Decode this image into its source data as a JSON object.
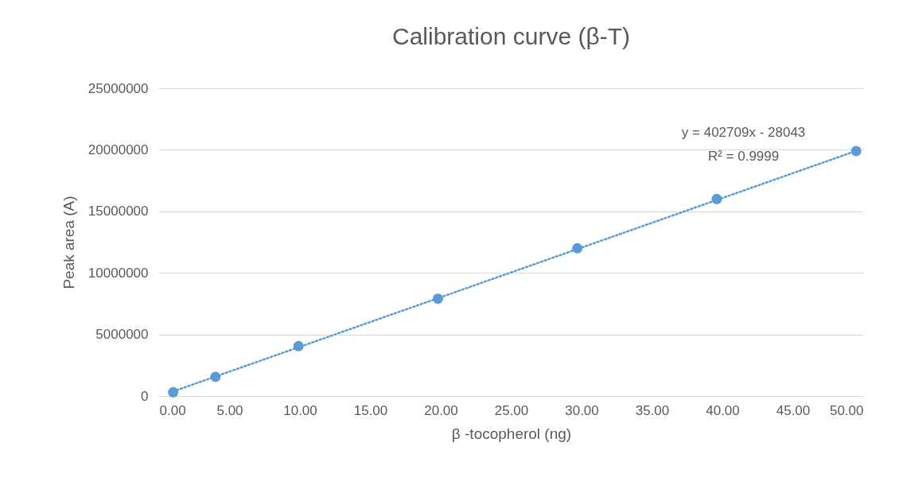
{
  "chart_data": {
    "type": "scatter",
    "title": "Calibration curve (β-T)",
    "xlabel": "β -tocopherol (ng)",
    "ylabel": "Peak area (A)",
    "series": [
      {
        "color": "#5b9bd5",
        "x": [
          1,
          4,
          9.9,
          19.8,
          29.7,
          39.6,
          49.5
        ],
        "values": [
          300000,
          1550000,
          4050000,
          7900000,
          12000000,
          16000000,
          19900000
        ],
        "marker": "circle"
      },
      {
        "type": "line",
        "color": "#5b9bd5",
        "x": [
          1,
          49.5
        ],
        "values": [
          370000,
          19910000
        ],
        "line_style": "dotted",
        "marker": "none"
      }
    ],
    "xlim": [
      0,
      50
    ],
    "xticks": [
      {
        "value": 0,
        "label": "0.00"
      },
      {
        "value": 5,
        "label": "5.00"
      },
      {
        "value": 10,
        "label": "10.00"
      },
      {
        "value": 15,
        "label": "15.00"
      },
      {
        "value": 20,
        "label": "20.00"
      },
      {
        "value": 25,
        "label": "25.00"
      },
      {
        "value": 30,
        "label": "30.00"
      },
      {
        "value": 35,
        "label": "35.00"
      },
      {
        "value": 40,
        "label": "40.00"
      },
      {
        "value": 45,
        "label": "45.00"
      },
      {
        "value": 50,
        "label": "50.00"
      }
    ],
    "ylim": [
      0,
      25000000
    ],
    "yticks": [
      0,
      5000000,
      10000000,
      15000000,
      20000000,
      25000000
    ],
    "grid": "y",
    "annotations": [
      "y = 402709x - 28043",
      "R² = 0.9999"
    ]
  }
}
